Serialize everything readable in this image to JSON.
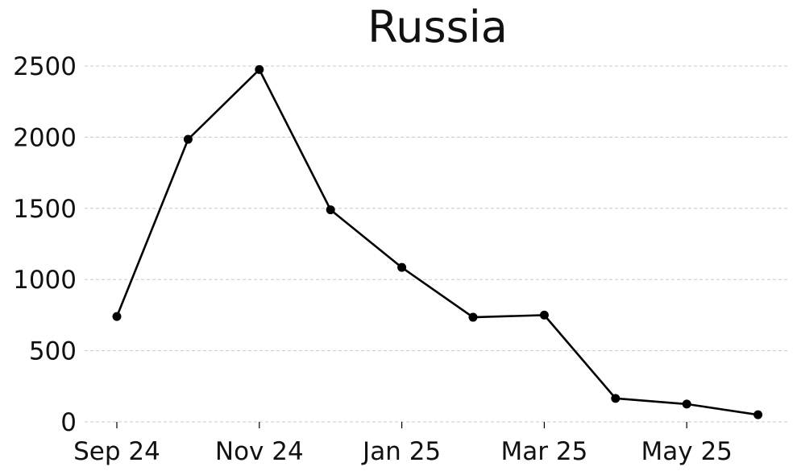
{
  "chart_data": {
    "type": "line",
    "title": "Russia",
    "xlabel": "",
    "ylabel": "",
    "x": [
      "2024-09",
      "2024-10",
      "2024-11",
      "2024-12",
      "2025-01",
      "2025-02",
      "2025-03",
      "2025-04",
      "2025-05",
      "2025-06"
    ],
    "series": [
      {
        "values": [
          740,
          1985,
          2475,
          1490,
          1085,
          735,
          750,
          165,
          125,
          50
        ]
      }
    ],
    "xticks": [
      {
        "x": "2024-09",
        "label": "Sep 24"
      },
      {
        "x": "2024-11",
        "label": "Nov 24"
      },
      {
        "x": "2025-01",
        "label": "Jan 25"
      },
      {
        "x": "2025-03",
        "label": "Mar 25"
      },
      {
        "x": "2025-05",
        "label": "May 25"
      }
    ],
    "yticks": [
      0,
      500,
      1000,
      1500,
      2000,
      2500
    ],
    "ylim": [
      0,
      2500
    ],
    "grid": "horizontal dashed",
    "colors": {
      "line": "#000000",
      "grid": "#c8c8c8"
    }
  }
}
